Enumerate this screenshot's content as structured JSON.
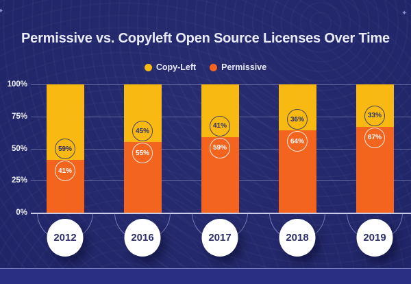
{
  "title": "Permissive vs. Copyleft Open Source Licenses Over Time",
  "legend": {
    "items": [
      {
        "label": "Copy-Left",
        "color": "#f8b912"
      },
      {
        "label": "Permissive",
        "color": "#f3641e"
      }
    ]
  },
  "decorations": {
    "sparkle_glyph": "✦"
  },
  "colors": {
    "background": "#21266d",
    "footer_strip": "#2a2f84",
    "copyleft_yellow": "#f8b912",
    "permissive_orange": "#f3641e",
    "title_text": "#e9ebf6",
    "dark_label": "#2b2f6b"
  },
  "chart_data": {
    "type": "bar",
    "stacked": true,
    "title": "Permissive vs. Copyleft Open Source Licenses Over Time",
    "xlabel": "",
    "ylabel": "",
    "ylim": [
      0,
      100
    ],
    "grid": true,
    "legend_position": "top",
    "y_ticks": [
      "100%",
      "75%",
      "50%",
      "25%",
      "0%"
    ],
    "categories": [
      "2012",
      "2016",
      "2017",
      "2018",
      "2019"
    ],
    "series": [
      {
        "name": "Copy-Left",
        "color": "#f8b912",
        "values": [
          59,
          45,
          41,
          36,
          33
        ],
        "labels": [
          "59%",
          "45%",
          "41%",
          "36%",
          "33%"
        ]
      },
      {
        "name": "Permissive",
        "color": "#f3641e",
        "values": [
          41,
          55,
          59,
          64,
          67
        ],
        "labels": [
          "41%",
          "55%",
          "59%",
          "64%",
          "67%"
        ]
      }
    ]
  }
}
